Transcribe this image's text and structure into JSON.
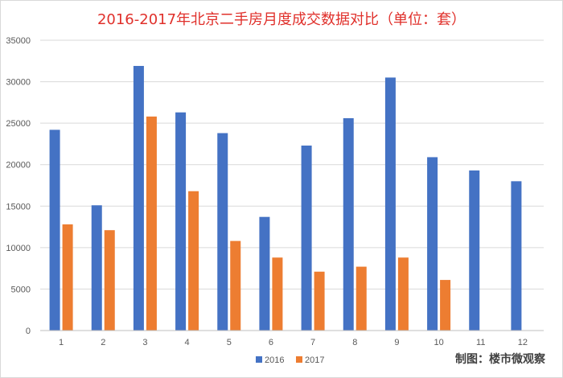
{
  "chart_data": {
    "type": "bar",
    "title": "2016-2017年北京二手房月度成交数据对比（单位：套）",
    "categories": [
      "1",
      "2",
      "3",
      "4",
      "5",
      "6",
      "7",
      "8",
      "9",
      "10",
      "11",
      "12"
    ],
    "series": [
      {
        "name": "2016",
        "color": "#4472c4",
        "values": [
          24200,
          15100,
          31900,
          26300,
          23800,
          13700,
          22300,
          25600,
          30500,
          20900,
          19300,
          18000
        ]
      },
      {
        "name": "2017",
        "color": "#ed7d31",
        "values": [
          12800,
          12100,
          25800,
          16800,
          10800,
          8800,
          7100,
          7700,
          8800,
          6100,
          null,
          null
        ]
      }
    ],
    "ylim": [
      0,
      35000
    ],
    "yticks": [
      "0",
      "5000",
      "10000",
      "15000",
      "20000",
      "25000",
      "30000",
      "35000"
    ],
    "grid": true,
    "legend": "bottom-center"
  },
  "credit": "制图：楼市微观察"
}
